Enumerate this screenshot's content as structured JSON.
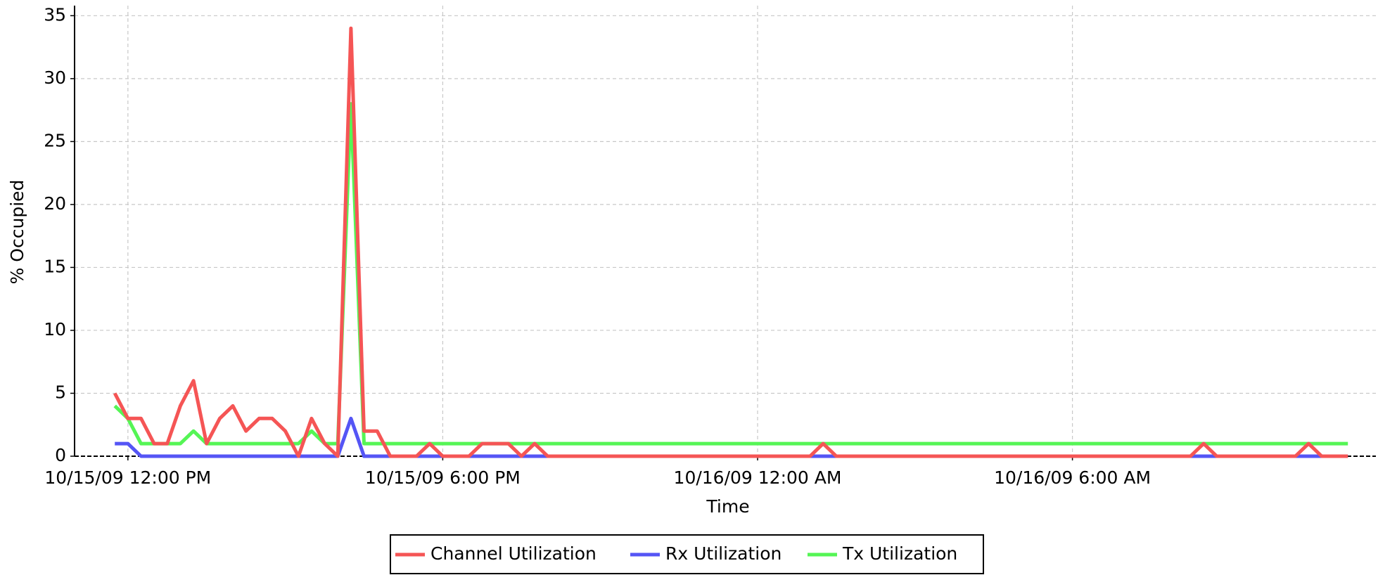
{
  "chart_data": {
    "type": "line",
    "xlabel": "Time",
    "ylabel": "% Occupied",
    "x": [
      "2009-10-15T11:45",
      "2009-10-15T12:00",
      "2009-10-15T12:15",
      "2009-10-15T12:30",
      "2009-10-15T12:45",
      "2009-10-15T13:00",
      "2009-10-15T13:15",
      "2009-10-15T13:30",
      "2009-10-15T13:45",
      "2009-10-15T14:00",
      "2009-10-15T14:15",
      "2009-10-15T14:30",
      "2009-10-15T14:45",
      "2009-10-15T15:00",
      "2009-10-15T15:15",
      "2009-10-15T15:30",
      "2009-10-15T15:45",
      "2009-10-15T16:00",
      "2009-10-15T16:15",
      "2009-10-15T16:30",
      "2009-10-15T16:45",
      "2009-10-15T17:00",
      "2009-10-15T17:15",
      "2009-10-15T17:30",
      "2009-10-15T17:45",
      "2009-10-15T18:00",
      "2009-10-15T18:15",
      "2009-10-15T18:30",
      "2009-10-15T18:45",
      "2009-10-15T19:00",
      "2009-10-15T19:15",
      "2009-10-15T19:30",
      "2009-10-15T19:45",
      "2009-10-15T20:00",
      "2009-10-15T20:15",
      "2009-10-15T20:30",
      "2009-10-15T20:45",
      "2009-10-15T21:00",
      "2009-10-15T21:15",
      "2009-10-15T21:30",
      "2009-10-15T21:45",
      "2009-10-15T22:00",
      "2009-10-15T22:15",
      "2009-10-15T22:30",
      "2009-10-15T22:45",
      "2009-10-15T23:00",
      "2009-10-15T23:15",
      "2009-10-15T23:30",
      "2009-10-15T23:45",
      "2009-10-16T00:00",
      "2009-10-16T00:15",
      "2009-10-16T00:30",
      "2009-10-16T00:45",
      "2009-10-16T01:00",
      "2009-10-16T01:15",
      "2009-10-16T01:30",
      "2009-10-16T01:45",
      "2009-10-16T02:00",
      "2009-10-16T02:15",
      "2009-10-16T02:30",
      "2009-10-16T02:45",
      "2009-10-16T03:00",
      "2009-10-16T03:15",
      "2009-10-16T03:30",
      "2009-10-16T03:45",
      "2009-10-16T04:00",
      "2009-10-16T04:15",
      "2009-10-16T04:30",
      "2009-10-16T04:45",
      "2009-10-16T05:00",
      "2009-10-16T05:15",
      "2009-10-16T05:30",
      "2009-10-16T05:45",
      "2009-10-16T06:00",
      "2009-10-16T06:15",
      "2009-10-16T06:30",
      "2009-10-16T06:45",
      "2009-10-16T07:00",
      "2009-10-16T07:15",
      "2009-10-16T07:30",
      "2009-10-16T07:45",
      "2009-10-16T08:00",
      "2009-10-16T08:15",
      "2009-10-16T08:30",
      "2009-10-16T08:45",
      "2009-10-16T09:00",
      "2009-10-16T09:15",
      "2009-10-16T09:30",
      "2009-10-16T09:45",
      "2009-10-16T10:00",
      "2009-10-16T10:15",
      "2009-10-16T10:30",
      "2009-10-16T10:45",
      "2009-10-16T11:00",
      "2009-10-16T11:15"
    ],
    "series": [
      {
        "name": "Channel Utilization",
        "color": "#f55555",
        "values": [
          5,
          3,
          3,
          1,
          1,
          4,
          6,
          1,
          3,
          4,
          2,
          3,
          3,
          2,
          0,
          3,
          1,
          0,
          34,
          2,
          2,
          0,
          0,
          0,
          1,
          0,
          0,
          0,
          1,
          1,
          1,
          0,
          1,
          0,
          0,
          0,
          0,
          0,
          0,
          0,
          0,
          0,
          0,
          0,
          0,
          0,
          0,
          0,
          0,
          0,
          0,
          0,
          0,
          0,
          1,
          0,
          0,
          0,
          0,
          0,
          0,
          0,
          0,
          0,
          0,
          0,
          0,
          0,
          0,
          0,
          0,
          0,
          0,
          0,
          0,
          0,
          0,
          0,
          0,
          0,
          0,
          0,
          0,
          1,
          0,
          0,
          0,
          0,
          0,
          0,
          0,
          1,
          0,
          0,
          0
        ]
      },
      {
        "name": "Rx Utilization",
        "color": "#5555f5",
        "values": [
          1,
          1,
          0,
          0,
          0,
          0,
          0,
          0,
          0,
          0,
          0,
          0,
          0,
          0,
          0,
          0,
          0,
          0,
          3,
          0,
          0,
          0,
          0,
          0,
          0,
          0,
          0,
          0,
          0,
          0,
          0,
          0,
          0,
          0,
          0,
          0,
          0,
          0,
          0,
          0,
          0,
          0,
          0,
          0,
          0,
          0,
          0,
          0,
          0,
          0,
          0,
          0,
          0,
          0,
          0,
          0,
          0,
          0,
          0,
          0,
          0,
          0,
          0,
          0,
          0,
          0,
          0,
          0,
          0,
          0,
          0,
          0,
          0,
          0,
          0,
          0,
          0,
          0,
          0,
          0,
          0,
          0,
          0,
          0,
          0,
          0,
          0,
          0,
          0,
          0,
          0,
          0,
          0,
          0,
          0
        ]
      },
      {
        "name": "Tx Utilization",
        "color": "#55f555",
        "values": [
          4,
          3,
          1,
          1,
          1,
          1,
          2,
          1,
          1,
          1,
          1,
          1,
          1,
          1,
          1,
          2,
          1,
          1,
          28,
          1,
          1,
          1,
          1,
          1,
          1,
          1,
          1,
          1,
          1,
          1,
          1,
          1,
          1,
          1,
          1,
          1,
          1,
          1,
          1,
          1,
          1,
          1,
          1,
          1,
          1,
          1,
          1,
          1,
          1,
          1,
          1,
          1,
          1,
          1,
          1,
          1,
          1,
          1,
          1,
          1,
          1,
          1,
          1,
          1,
          1,
          1,
          1,
          1,
          1,
          1,
          1,
          1,
          1,
          1,
          1,
          1,
          1,
          1,
          1,
          1,
          1,
          1,
          1,
          1,
          1,
          1,
          1,
          1,
          1,
          1,
          1,
          1,
          1,
          1,
          1
        ]
      }
    ],
    "xlim": [
      "2009-10-15T10:59",
      "2009-10-16T11:47"
    ],
    "xticks": [
      {
        "value": "2009-10-15T12:00",
        "label": "10/15/09 12:00 PM"
      },
      {
        "value": "2009-10-15T18:00",
        "label": "10/15/09 6:00 PM"
      },
      {
        "value": "2009-10-16T00:00",
        "label": "10/16/09 12:00 AM"
      },
      {
        "value": "2009-10-16T06:00",
        "label": "10/16/09 6:00 AM"
      }
    ],
    "ylim": [
      0,
      35.8
    ],
    "yticks": [
      0,
      5,
      10,
      15,
      20,
      25,
      30,
      35
    ],
    "grid": true,
    "legend": "bottom"
  }
}
